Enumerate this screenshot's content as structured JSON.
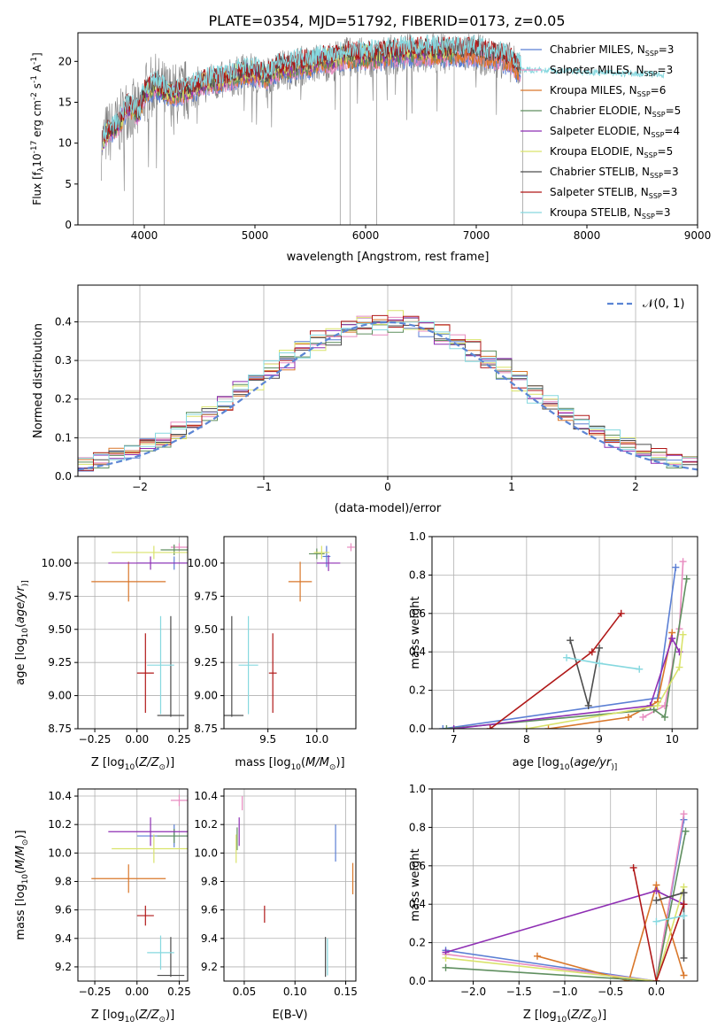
{
  "figure_title": "PLATE=0354, MJD=51792, FIBERID=0173, z=0.05",
  "colors": {
    "c1": "#5b7fd4",
    "c2": "#e88cc0",
    "c3": "#d9772a",
    "c4": "#5f8f5f",
    "c5": "#8e2eb3",
    "c6": "#d9e36b",
    "c7": "#4d4d4d",
    "c8": "#b01818",
    "c9": "#86d8df",
    "grey": "#7f7f7f",
    "normal": "#5b85d4",
    "grid": "#b0b0b0"
  },
  "chart_data": [
    {
      "id": "spectrum",
      "type": "line",
      "xlabel": "wavelength [Angstrom, rest frame]",
      "ylabel_parts": [
        "Flux [f",
        "λ",
        "10",
        "-17",
        " erg cm",
        "-2",
        " s",
        "-1",
        " A",
        "-1",
        "]"
      ],
      "xlim": [
        3400,
        9000
      ],
      "ylim": [
        0,
        23.5
      ],
      "xticks": [
        4000,
        5000,
        6000,
        7000,
        8000,
        9000
      ],
      "yticks": [
        0,
        5,
        10,
        15,
        20
      ],
      "grid": false,
      "legend_position": "right",
      "observed_anchors": {
        "x": [
          3600,
          3650,
          3700,
          3750,
          3800,
          3850,
          3900,
          3950,
          4000,
          4100,
          4200,
          4300,
          4400,
          4500,
          4600,
          4700,
          4800,
          4900,
          5000,
          5100,
          5200,
          5300,
          5400,
          5500,
          5600,
          5700,
          5800,
          5900,
          6000,
          6100,
          6200,
          6300,
          6400,
          6500,
          6600,
          6700,
          6800,
          6900,
          7000,
          7100,
          7200,
          7300,
          7380
        ],
        "y": [
          9,
          11,
          11.5,
          12,
          13,
          14.5,
          14,
          13.5,
          16,
          17,
          16,
          16,
          16.5,
          17,
          17.5,
          17.5,
          18,
          18.5,
          18.5,
          18,
          19,
          19,
          19.5,
          19.5,
          20,
          20,
          20.5,
          20.5,
          20.5,
          20.5,
          20.8,
          20.8,
          21,
          21,
          21,
          21,
          21,
          21,
          21,
          20.5,
          20.5,
          20,
          19
        ]
      },
      "series": [
        {
          "name_parts": [
            "Chabrier MILES, N",
            "SSP",
            "=3"
          ],
          "color": "c1",
          "xmax": 7400
        },
        {
          "name_parts": [
            "Salpeter MILES, N",
            "SSP",
            "=3"
          ],
          "color": "c2",
          "xmax": 7400
        },
        {
          "name_parts": [
            "Kroupa MILES, N",
            "SSP",
            "=6"
          ],
          "color": "c3",
          "xmax": 7400
        },
        {
          "name_parts": [
            "Chabrier ELODIE, N",
            "SSP",
            "=5"
          ],
          "color": "c4",
          "xmax": 6800
        },
        {
          "name_parts": [
            "Salpeter ELODIE, N",
            "SSP",
            "=4"
          ],
          "color": "c5",
          "xmax": 6800
        },
        {
          "name_parts": [
            "Kroupa ELODIE, N",
            "SSP",
            "=5"
          ],
          "color": "c6",
          "xmax": 6800
        },
        {
          "name_parts": [
            "Chabrier STELIB, N",
            "SSP",
            "=3"
          ],
          "color": "c7",
          "xmax": 7400
        },
        {
          "name_parts": [
            "Salpeter STELIB, N",
            "SSP",
            "=3"
          ],
          "color": "c8",
          "xmax": 7400
        },
        {
          "name_parts": [
            "Kroupa STELIB, N",
            "SSP",
            "=3"
          ],
          "color": "c9",
          "xmax": 8700
        }
      ]
    },
    {
      "id": "residuals",
      "type": "step",
      "xlabel": "(data-model)/error",
      "ylabel": "Normed distribution",
      "xlim": [
        -2.5,
        2.5
      ],
      "ylim": [
        0,
        0.495
      ],
      "xticks": [
        -2,
        -1,
        0,
        1,
        2
      ],
      "yticks": [
        0.0,
        0.1,
        0.2,
        0.3,
        0.4
      ],
      "grid": true,
      "legend_position": "top-right",
      "normal_label": "𝒩(0, 1)",
      "bins": 40,
      "series_colors": [
        "c1",
        "c2",
        "c3",
        "c4",
        "c5",
        "c6",
        "c7",
        "c8",
        "c9"
      ]
    },
    {
      "id": "age_vs_Z",
      "type": "errorbar",
      "xlabel_parts": [
        "Z [log",
        "10",
        "(",
        "Z/Z",
        "⊙",
        ")]"
      ],
      "ylabel_parts": [
        "age  [log",
        "10",
        "(",
        "age/yr",
        ")]"
      ],
      "xlim": [
        -0.35,
        0.3
      ],
      "ylim": [
        8.75,
        10.2
      ],
      "xticks": [
        -0.25,
        0.0,
        0.25
      ],
      "yticks": [
        8.75,
        9.0,
        9.25,
        9.5,
        9.75,
        10.0
      ],
      "grid": true,
      "points": [
        {
          "color": "c1",
          "x": 0.22,
          "xerr": 0.22,
          "y": 10.0,
          "yerr": 0.05
        },
        {
          "color": "c2",
          "x": 0.25,
          "xerr": 0.05,
          "y": 10.12,
          "yerr": 0.03
        },
        {
          "color": "c3",
          "x": -0.05,
          "xerr": 0.22,
          "y": 9.86,
          "yerr": 0.15
        },
        {
          "color": "c4",
          "x": 0.22,
          "xerr": 0.08,
          "y": 10.1,
          "yerr": 0.04
        },
        {
          "color": "c5",
          "x": 0.08,
          "xerr": 0.25,
          "y": 10.0,
          "yerr": 0.05
        },
        {
          "color": "c6",
          "x": 0.1,
          "xerr": 0.25,
          "y": 10.08,
          "yerr": 0.05
        },
        {
          "color": "c7",
          "x": 0.2,
          "xerr": 0.08,
          "y": 8.85,
          "yerr": 0.0
        },
        {
          "color": "c7",
          "x": 0.2,
          "xerr": 0.0,
          "y": 9.22,
          "yerr": 0.38
        },
        {
          "color": "c8",
          "x": 0.05,
          "xerr": 0.05,
          "y": 9.17,
          "yerr": 0.3
        },
        {
          "color": "c9",
          "x": 0.14,
          "xerr": 0.08,
          "y": 9.23,
          "yerr": 0.37
        }
      ]
    },
    {
      "id": "age_vs_mass",
      "type": "errorbar",
      "xlabel_parts": [
        "mass [log",
        "10",
        "(",
        "M/M",
        "⊙",
        ")]"
      ],
      "xlim": [
        9.05,
        10.4
      ],
      "ylim": [
        8.75,
        10.2
      ],
      "xticks": [
        9.5,
        10.0
      ],
      "yticks": [
        8.75,
        9.0,
        9.25,
        9.5,
        9.75,
        10.0
      ],
      "grid": true,
      "points": [
        {
          "color": "c1",
          "x": 10.1,
          "xerr": 0.04,
          "y": 10.05,
          "yerr": 0.08
        },
        {
          "color": "c2",
          "x": 10.35,
          "xerr": 0.04,
          "y": 10.12,
          "yerr": 0.03
        },
        {
          "color": "c3",
          "x": 9.83,
          "xerr": 0.12,
          "y": 9.86,
          "yerr": 0.15
        },
        {
          "color": "c4",
          "x": 10.0,
          "xerr": 0.08,
          "y": 10.07,
          "yerr": 0.04
        },
        {
          "color": "c5",
          "x": 10.12,
          "xerr": 0.12,
          "y": 10.0,
          "yerr": 0.06
        },
        {
          "color": "c6",
          "x": 10.05,
          "xerr": 0.08,
          "y": 10.08,
          "yerr": 0.05
        },
        {
          "color": "c7",
          "x": 9.13,
          "xerr": 0.12,
          "y": 8.85,
          "yerr": 0.0
        },
        {
          "color": "c7",
          "x": 9.13,
          "xerr": 0.0,
          "y": 9.22,
          "yerr": 0.38
        },
        {
          "color": "c8",
          "x": 9.55,
          "xerr": 0.04,
          "y": 9.17,
          "yerr": 0.3
        },
        {
          "color": "c9",
          "x": 9.3,
          "xerr": 0.1,
          "y": 9.23,
          "yerr": 0.37
        }
      ]
    },
    {
      "id": "weight_vs_age",
      "type": "line",
      "xlabel_parts": [
        "age  [log",
        "10",
        "(",
        "age/yr",
        ")]"
      ],
      "ylabel": "mass weight",
      "xlim": [
        6.7,
        10.35
      ],
      "ylim": [
        0,
        1.0
      ],
      "xticks": [
        7,
        8,
        9,
        10
      ],
      "yticks": [
        0.0,
        0.2,
        0.4,
        0.6,
        0.8,
        1.0
      ],
      "grid": true,
      "series": [
        {
          "color": "c1",
          "x": [
            6.85,
            9.8,
            10.05
          ],
          "y": [
            0.0,
            0.16,
            0.84
          ]
        },
        {
          "color": "c2",
          "x": [
            9.6,
            9.9,
            10.1,
            10.15
          ],
          "y": [
            0.06,
            0.12,
            0.52,
            0.87
          ]
        },
        {
          "color": "c3",
          "x": [
            8.3,
            9.4,
            9.8,
            10.0
          ],
          "y": [
            0.0,
            0.06,
            0.14,
            0.5
          ]
        },
        {
          "color": "c4",
          "x": [
            6.9,
            9.75,
            9.9,
            10.2
          ],
          "y": [
            0.0,
            0.1,
            0.06,
            0.78
          ]
        },
        {
          "color": "c5",
          "x": [
            7.0,
            9.7,
            10.0,
            10.1
          ],
          "y": [
            0.0,
            0.12,
            0.47,
            0.4
          ]
        },
        {
          "color": "c6",
          "x": [
            8.0,
            9.8,
            10.1,
            10.15
          ],
          "y": [
            0.0,
            0.12,
            0.32,
            0.49
          ]
        },
        {
          "color": "c7",
          "x": [
            8.6,
            8.85,
            9.0
          ],
          "y": [
            0.46,
            0.12,
            0.42
          ]
        },
        {
          "color": "c8",
          "x": [
            7.5,
            8.9,
            9.3
          ],
          "y": [
            0.0,
            0.4,
            0.6
          ]
        },
        {
          "color": "c9",
          "x": [
            8.55,
            9.0,
            9.55
          ],
          "y": [
            0.37,
            0.34,
            0.31
          ]
        }
      ]
    },
    {
      "id": "mass_vs_Z",
      "type": "errorbar",
      "xlabel_parts": [
        "Z [log",
        "10",
        "(",
        "Z/Z",
        "⊙",
        ")]"
      ],
      "ylabel_parts": [
        "mass [log",
        "10",
        "(",
        "M/M",
        "⊙",
        ")]"
      ],
      "xlim": [
        -0.35,
        0.3
      ],
      "ylim": [
        9.1,
        10.45
      ],
      "xticks": [
        -0.25,
        0.0,
        0.25
      ],
      "yticks": [
        9.2,
        9.4,
        9.6,
        9.8,
        10.0,
        10.2,
        10.4
      ],
      "grid": true,
      "points": [
        {
          "color": "c1",
          "x": 0.22,
          "xerr": 0.22,
          "y": 10.12,
          "yerr": 0.08
        },
        {
          "color": "c2",
          "x": 0.25,
          "xerr": 0.05,
          "y": 10.37,
          "yerr": 0.04
        },
        {
          "color": "c3",
          "x": -0.05,
          "xerr": 0.22,
          "y": 9.82,
          "yerr": 0.1
        },
        {
          "color": "c4",
          "x": 0.22,
          "xerr": 0.1,
          "y": 10.12,
          "yerr": 0.05
        },
        {
          "color": "c5",
          "x": 0.08,
          "xerr": 0.25,
          "y": 10.15,
          "yerr": 0.1
        },
        {
          "color": "c6",
          "x": 0.1,
          "xerr": 0.25,
          "y": 10.03,
          "yerr": 0.1
        },
        {
          "color": "c7",
          "x": 0.2,
          "xerr": 0.08,
          "y": 9.14,
          "yerr": 0.0
        },
        {
          "color": "c7",
          "x": 0.2,
          "xerr": 0.0,
          "y": 9.27,
          "yerr": 0.14
        },
        {
          "color": "c8",
          "x": 0.05,
          "xerr": 0.05,
          "y": 9.56,
          "yerr": 0.07
        },
        {
          "color": "c9",
          "x": 0.14,
          "xerr": 0.08,
          "y": 9.3,
          "yerr": 0.12
        }
      ]
    },
    {
      "id": "mass_vs_ebv",
      "type": "errorbar",
      "xlabel": "E(B-V)",
      "xlim": [
        0.03,
        0.16
      ],
      "ylim": [
        9.1,
        10.45
      ],
      "xticks": [
        0.05,
        0.1,
        0.15
      ],
      "yticks": [
        9.2,
        9.4,
        9.6,
        9.8,
        10.0,
        10.2,
        10.4
      ],
      "grid": true,
      "points": [
        {
          "color": "c1",
          "x": 0.14,
          "xerr": 0.0,
          "y": 10.07,
          "yerr": 0.13
        },
        {
          "color": "c2",
          "x": 0.048,
          "xerr": 0.0,
          "y": 10.35,
          "yerr": 0.05
        },
        {
          "color": "c3",
          "x": 0.157,
          "xerr": 0.0,
          "y": 9.82,
          "yerr": 0.11
        },
        {
          "color": "c4",
          "x": 0.043,
          "xerr": 0.0,
          "y": 10.1,
          "yerr": 0.08
        },
        {
          "color": "c5",
          "x": 0.045,
          "xerr": 0.0,
          "y": 10.15,
          "yerr": 0.1
        },
        {
          "color": "c6",
          "x": 0.042,
          "xerr": 0.0,
          "y": 10.03,
          "yerr": 0.1
        },
        {
          "color": "c7",
          "x": 0.13,
          "xerr": 0.0,
          "y": 9.27,
          "yerr": 0.14
        },
        {
          "color": "c8",
          "x": 0.07,
          "xerr": 0.0,
          "y": 9.57,
          "yerr": 0.06
        },
        {
          "color": "c9",
          "x": 0.132,
          "xerr": 0.0,
          "y": 9.27,
          "yerr": 0.13
        }
      ]
    },
    {
      "id": "weight_vs_Z",
      "type": "line",
      "xlabel_parts": [
        "Z [log",
        "10",
        "(",
        "Z/Z",
        "⊙",
        ")]"
      ],
      "ylabel": "mass weight",
      "xlim": [
        -2.45,
        0.45
      ],
      "ylim": [
        0,
        1.0
      ],
      "xticks": [
        -2.0,
        -1.5,
        -1.0,
        -0.5,
        0.0
      ],
      "yticks": [
        0.0,
        0.2,
        0.4,
        0.6,
        0.8,
        1.0
      ],
      "grid": true,
      "series": [
        {
          "color": "c1",
          "x": [
            -2.3,
            0.0,
            0.3
          ],
          "y": [
            0.16,
            0.0,
            0.84
          ]
        },
        {
          "color": "c2",
          "x": [
            -2.3,
            0.0,
            0.3
          ],
          "y": [
            0.14,
            0.0,
            0.87
          ]
        },
        {
          "color": "c3",
          "x": [
            -1.3,
            -0.3,
            0.0,
            0.3
          ],
          "y": [
            0.13,
            0.0,
            0.5,
            0.03
          ]
        },
        {
          "color": "c4",
          "x": [
            -2.3,
            0.0,
            0.32
          ],
          "y": [
            0.07,
            0.0,
            0.78
          ]
        },
        {
          "color": "c5",
          "x": [
            -2.3,
            0.0,
            0.3
          ],
          "y": [
            0.15,
            0.47,
            0.4
          ]
        },
        {
          "color": "c6",
          "x": [
            -2.3,
            0.0,
            0.3
          ],
          "y": [
            0.12,
            0.0,
            0.49
          ]
        },
        {
          "color": "c7",
          "x": [
            0.3,
            0.3,
            0.0,
            0.3
          ],
          "y": [
            0.12,
            0.46,
            0.42,
            0.46
          ]
        },
        {
          "color": "c8",
          "x": [
            -0.25,
            0.0,
            0.3
          ],
          "y": [
            0.59,
            0.0,
            0.4
          ]
        },
        {
          "color": "c9",
          "x": [
            0.0,
            0.3
          ],
          "y": [
            0.31,
            0.34
          ]
        }
      ]
    }
  ]
}
